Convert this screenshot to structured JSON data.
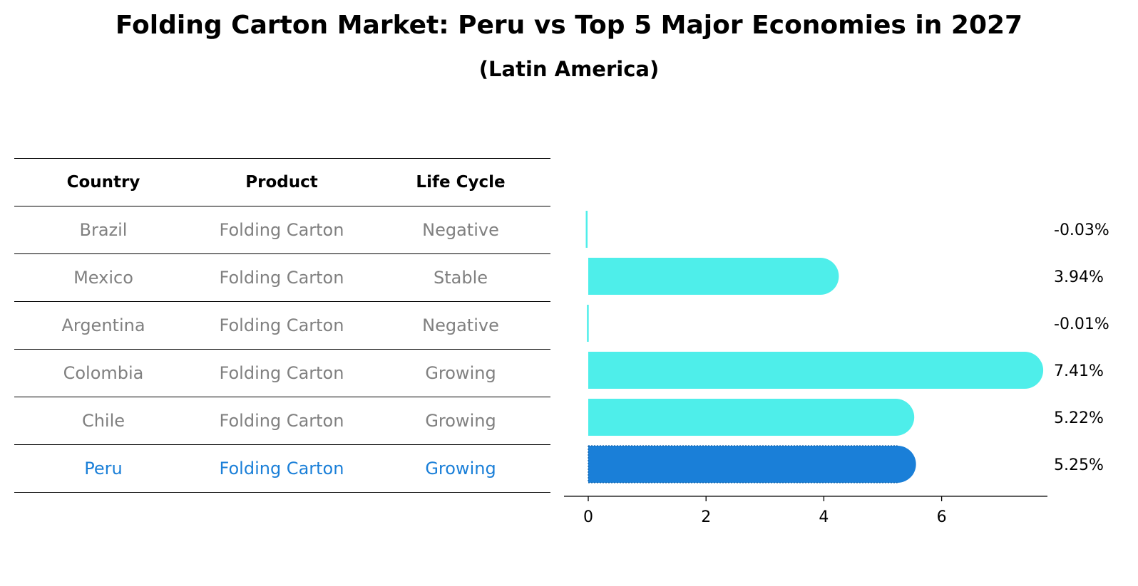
{
  "title": "Folding Carton Market: Peru vs Top 5 Major Economies in 2027",
  "subtitle": "(Latin America)",
  "table": {
    "headers": [
      "Country",
      "Product",
      "Life Cycle"
    ],
    "rows": [
      {
        "country": "Brazil",
        "product": "Folding Carton",
        "life_cycle": "Negative"
      },
      {
        "country": "Mexico",
        "product": "Folding Carton",
        "life_cycle": "Stable"
      },
      {
        "country": "Argentina",
        "product": "Folding Carton",
        "life_cycle": "Negative"
      },
      {
        "country": "Colombia",
        "product": "Folding Carton",
        "life_cycle": "Growing"
      },
      {
        "country": "Chile",
        "product": "Folding Carton",
        "life_cycle": "Growing"
      },
      {
        "country": "Peru",
        "product": "Folding Carton",
        "life_cycle": "Growing"
      }
    ],
    "highlight_country": "Peru"
  },
  "colors": {
    "bar": "#4eeeea",
    "highlight_bar": "#1a7fd8",
    "muted_text": "#808080",
    "highlight_text": "#1a7fd8"
  },
  "chart_data": {
    "type": "bar",
    "orientation": "horizontal",
    "categories": [
      "Brazil",
      "Mexico",
      "Argentina",
      "Colombia",
      "Chile",
      "Peru"
    ],
    "values": [
      -0.03,
      3.94,
      -0.01,
      7.41,
      5.22,
      5.25
    ],
    "value_labels": [
      "-0.03%",
      "3.94%",
      "-0.01%",
      "7.41%",
      "5.22%",
      "5.25%"
    ],
    "highlight": "Peru",
    "xticks": [
      0,
      2,
      4,
      6
    ],
    "xlim": [
      -0.4,
      7.8
    ],
    "xlabel": "",
    "ylabel": ""
  }
}
